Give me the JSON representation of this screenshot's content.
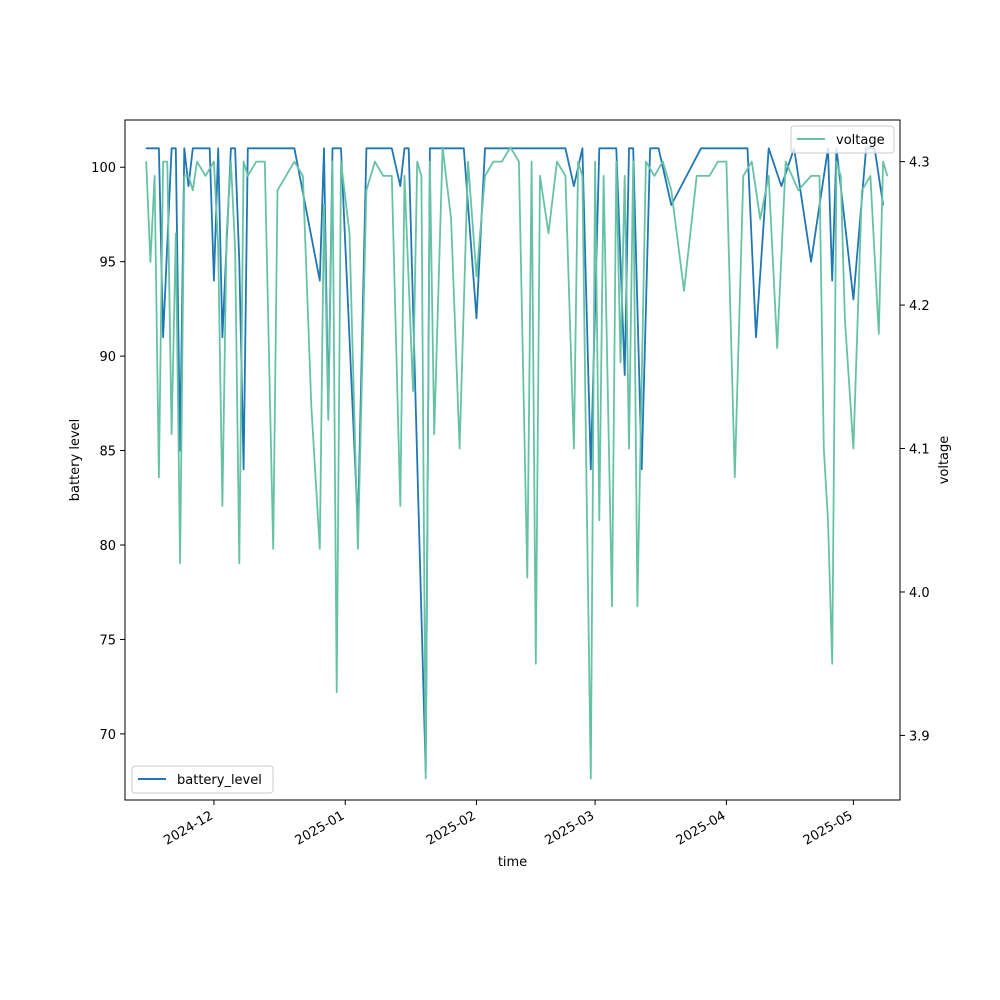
{
  "chart_data": {
    "type": "line",
    "title": "",
    "xlabel": "time",
    "ylabel_left": "battery level",
    "ylabel_right": "voltage",
    "x_ticks": [
      "2024-12",
      "2025-01",
      "2025-02",
      "2025-03",
      "2025-04",
      "2025-05"
    ],
    "xlim": [
      "2024-11-10",
      "2025-05-12"
    ],
    "y_left_ticks": [
      "70",
      "75",
      "80",
      "85",
      "90",
      "95",
      "100"
    ],
    "y_left_lim": [
      66.5,
      102.5
    ],
    "y_right_ticks": [
      "3.9",
      "4.0",
      "4.1",
      "4.2",
      "4.3"
    ],
    "y_right_lim": [
      3.855,
      4.329
    ],
    "legend_left": {
      "position": "lower-left",
      "label": "battery_level"
    },
    "legend_right": {
      "position": "upper-right",
      "label": "voltage"
    },
    "colors": {
      "battery_level": "#1f77b4",
      "voltage": "#66c2a5"
    },
    "series": [
      {
        "name": "battery_level",
        "axis": "left",
        "x": [
          "2024-11-15",
          "2024-11-18",
          "2024-11-19",
          "2024-11-21",
          "2024-11-22",
          "2024-11-23",
          "2024-11-24",
          "2024-11-25",
          "2024-11-26",
          "2024-11-27",
          "2024-11-30",
          "2024-12-01",
          "2024-12-02",
          "2024-12-03",
          "2024-12-05",
          "2024-12-06",
          "2024-12-07",
          "2024-12-08",
          "2024-12-09",
          "2024-12-10",
          "2024-12-18",
          "2024-12-20",
          "2024-12-26",
          "2024-12-27",
          "2024-12-28",
          "2024-12-29",
          "2024-12-30",
          "2024-12-31",
          "2025-01-04",
          "2025-01-06",
          "2025-01-12",
          "2025-01-14",
          "2025-01-15",
          "2025-01-16",
          "2025-01-20",
          "2025-01-21",
          "2025-01-26",
          "2025-01-29",
          "2025-02-01",
          "2025-02-03",
          "2025-02-05",
          "2025-02-08",
          "2025-02-13",
          "2025-02-15",
          "2025-02-18",
          "2025-02-20",
          "2025-02-22",
          "2025-02-24",
          "2025-02-26",
          "2025-02-28",
          "2025-03-02",
          "2025-03-04",
          "2025-03-06",
          "2025-03-08",
          "2025-03-09",
          "2025-03-10",
          "2025-03-12",
          "2025-03-14",
          "2025-03-16",
          "2025-03-19",
          "2025-03-26",
          "2025-03-28",
          "2025-04-01",
          "2025-04-06",
          "2025-04-08",
          "2025-04-11",
          "2025-04-14",
          "2025-04-17",
          "2025-04-21",
          "2025-04-25",
          "2025-04-26",
          "2025-04-27",
          "2025-05-01",
          "2025-05-04",
          "2025-05-06",
          "2025-05-08"
        ],
        "y": [
          101,
          101,
          91,
          101,
          101,
          85,
          101,
          99,
          101,
          101,
          101,
          94,
          101,
          91,
          101,
          101,
          95,
          84,
          101,
          101,
          101,
          101,
          94,
          101,
          87,
          101,
          101,
          101,
          81,
          101,
          101,
          99,
          101,
          101,
          68,
          101,
          101,
          101,
          92,
          101,
          101,
          101,
          101,
          101,
          101,
          101,
          101,
          99,
          101,
          84,
          101,
          101,
          101,
          89,
          101,
          101,
          84,
          101,
          101,
          98,
          101,
          101,
          101,
          101,
          91,
          101,
          99,
          101,
          95,
          101,
          94,
          101,
          93,
          101,
          101,
          98
        ]
      },
      {
        "name": "voltage",
        "axis": "right",
        "x": [
          "2024-11-15",
          "2024-11-16",
          "2024-11-17",
          "2024-11-18",
          "2024-11-19",
          "2024-11-20",
          "2024-11-21",
          "2024-11-22",
          "2024-11-23",
          "2024-11-24",
          "2024-11-25",
          "2024-11-26",
          "2024-11-27",
          "2024-11-29",
          "2024-12-01",
          "2024-12-02",
          "2024-12-03",
          "2024-12-04",
          "2024-12-05",
          "2024-12-06",
          "2024-12-07",
          "2024-12-08",
          "2024-12-09",
          "2024-12-11",
          "2024-12-13",
          "2024-12-15",
          "2024-12-16",
          "2024-12-20",
          "2024-12-22",
          "2024-12-24",
          "2024-12-26",
          "2024-12-27",
          "2024-12-28",
          "2024-12-29",
          "2024-12-30",
          "2024-12-31",
          "2025-01-02",
          "2025-01-04",
          "2025-01-06",
          "2025-01-08",
          "2025-01-10",
          "2025-01-12",
          "2025-01-14",
          "2025-01-15",
          "2025-01-17",
          "2025-01-18",
          "2025-01-19",
          "2025-01-20",
          "2025-01-21",
          "2025-01-22",
          "2025-01-24",
          "2025-01-26",
          "2025-01-28",
          "2025-01-30",
          "2025-02-01",
          "2025-02-03",
          "2025-02-05",
          "2025-02-07",
          "2025-02-09",
          "2025-02-11",
          "2025-02-13",
          "2025-02-14",
          "2025-02-15",
          "2025-02-16",
          "2025-02-18",
          "2025-02-20",
          "2025-02-22",
          "2025-02-24",
          "2025-02-25",
          "2025-02-26",
          "2025-02-27",
          "2025-02-28",
          "2025-03-01",
          "2025-03-02",
          "2025-03-03",
          "2025-03-05",
          "2025-03-06",
          "2025-03-07",
          "2025-03-08",
          "2025-03-09",
          "2025-03-10",
          "2025-03-11",
          "2025-03-13",
          "2025-03-15",
          "2025-03-17",
          "2025-03-19",
          "2025-03-22",
          "2025-03-25",
          "2025-03-28",
          "2025-03-30",
          "2025-04-01",
          "2025-04-03",
          "2025-04-05",
          "2025-04-07",
          "2025-04-09",
          "2025-04-11",
          "2025-04-13",
          "2025-04-15",
          "2025-04-18",
          "2025-04-21",
          "2025-04-23",
          "2025-04-24",
          "2025-04-25",
          "2025-04-26",
          "2025-04-27",
          "2025-04-28",
          "2025-04-29",
          "2025-05-01",
          "2025-05-03",
          "2025-05-05",
          "2025-05-07",
          "2025-05-08",
          "2025-05-09"
        ],
        "y": [
          4.3,
          4.23,
          4.29,
          4.08,
          4.3,
          4.3,
          4.11,
          4.25,
          4.02,
          4.29,
          4.29,
          4.28,
          4.3,
          4.29,
          4.3,
          4.24,
          4.06,
          4.25,
          4.3,
          4.24,
          4.02,
          4.3,
          4.29,
          4.3,
          4.3,
          4.03,
          4.28,
          4.3,
          4.29,
          4.13,
          4.03,
          4.27,
          4.12,
          4.3,
          3.93,
          4.3,
          4.25,
          4.03,
          4.28,
          4.3,
          4.29,
          4.29,
          4.06,
          4.29,
          4.14,
          4.3,
          4.29,
          3.87,
          4.3,
          4.11,
          4.31,
          4.26,
          4.1,
          4.3,
          4.22,
          4.29,
          4.3,
          4.3,
          4.31,
          4.3,
          4.01,
          4.3,
          3.95,
          4.29,
          4.25,
          4.3,
          4.29,
          4.1,
          4.3,
          4.29,
          4.07,
          3.87,
          4.3,
          4.05,
          4.29,
          3.99,
          4.3,
          4.16,
          4.29,
          4.1,
          4.3,
          3.99,
          4.3,
          4.29,
          4.3,
          4.28,
          4.21,
          4.29,
          4.29,
          4.3,
          4.3,
          4.08,
          4.29,
          4.3,
          4.26,
          4.29,
          4.17,
          4.3,
          4.28,
          4.29,
          4.29,
          4.1,
          4.05,
          3.95,
          4.3,
          4.29,
          4.19,
          4.1,
          4.28,
          4.29,
          4.18,
          4.3,
          4.29
        ]
      }
    ]
  }
}
